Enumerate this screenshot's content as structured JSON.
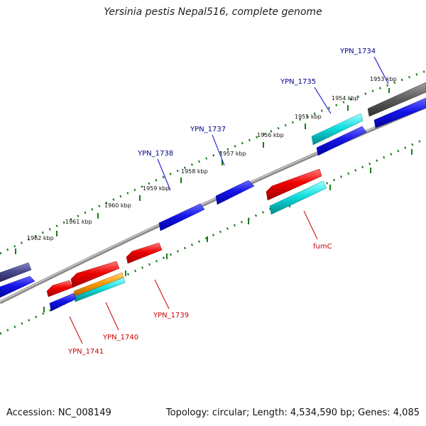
{
  "title": "Yersinia pestis Nepal516, complete genome",
  "accession": "Accession: NC_008149",
  "summary": "Topology: circular; Length: 4,534,590 bp; Genes: 4,085",
  "scale_labels": [
    "1953 kbp",
    "1954 kbp",
    "1955 kbp",
    "1956 kbp",
    "1957 kbp",
    "1958 kbp",
    "1959 kbp",
    "1960 kbp",
    "1961 kbp",
    "1962 kbp"
  ],
  "gene_labels_forward": [
    "YPN_1734",
    "YPN_1735",
    "YPN_1737",
    "YPN_1738"
  ],
  "gene_labels_reverse": [
    "fumC",
    "YPN_1739",
    "YPN_1740",
    "YPN_1741"
  ],
  "colors": {
    "backbone": "#8a8a8a",
    "forward_label": "#00008b",
    "reverse_label": "#cc0000",
    "tick": "#1a7a1a",
    "blue": "#1010e0",
    "red": "#e00000",
    "cyan": "#10d0d0",
    "orange": "#ff9900",
    "gray": "#606060",
    "slate": "#48488a"
  }
}
